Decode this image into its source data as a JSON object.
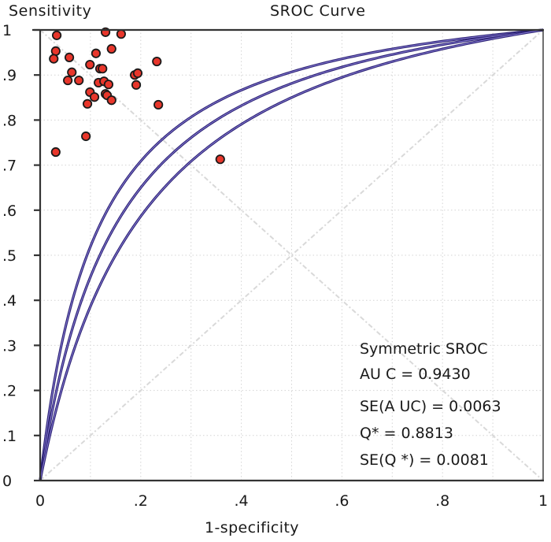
{
  "chart_data": {
    "type": "scatter",
    "title": "SROC Curve",
    "ylabel": "Sensitivity",
    "xlabel": "1-specificity",
    "xlim": [
      0,
      1
    ],
    "ylim": [
      0,
      1
    ],
    "grid": true,
    "x_ticks": [
      {
        "value": 0,
        "label": "0"
      },
      {
        "value": 0.2,
        "label": ".2"
      },
      {
        "value": 0.4,
        "label": ".4"
      },
      {
        "value": 0.6,
        "label": ".6"
      },
      {
        "value": 0.8,
        "label": ".8"
      },
      {
        "value": 1,
        "label": "1"
      }
    ],
    "y_ticks": [
      {
        "value": 0,
        "label": "0"
      },
      {
        "value": 0.1,
        "label": ".1"
      },
      {
        "value": 0.2,
        "label": ".2"
      },
      {
        "value": 0.3,
        "label": ".3"
      },
      {
        "value": 0.4,
        "label": ".4"
      },
      {
        "value": 0.5,
        "label": ".5"
      },
      {
        "value": 0.6,
        "label": ".6"
      },
      {
        "value": 0.7,
        "label": ".7"
      },
      {
        "value": 0.8,
        "label": ".8"
      },
      {
        "value": 0.9,
        "label": ".9"
      },
      {
        "value": 1,
        "label": "1"
      }
    ],
    "reference_lines": [
      {
        "name": "chance-diagonal",
        "from": [
          0,
          0
        ],
        "to": [
          1,
          1
        ]
      },
      {
        "name": "q-star-diagonal",
        "from": [
          0,
          1
        ],
        "to": [
          1,
          0
        ]
      }
    ],
    "curves": [
      {
        "name": "SROC upper CI",
        "log_dor": 4.55,
        "color": "#2b2173"
      },
      {
        "name": "Symmetric SROC",
        "log_dor": 4.01,
        "color": "#2b2173"
      },
      {
        "name": "SROC lower CI",
        "log_dor": 3.47,
        "color": "#2b2173"
      }
    ],
    "series": [
      {
        "name": "Studies",
        "color": "#e8362b",
        "points": [
          {
            "x": 0.033,
            "y": 0.988
          },
          {
            "x": 0.031,
            "y": 0.953
          },
          {
            "x": 0.027,
            "y": 0.936
          },
          {
            "x": 0.058,
            "y": 0.939
          },
          {
            "x": 0.063,
            "y": 0.906
          },
          {
            "x": 0.055,
            "y": 0.888
          },
          {
            "x": 0.077,
            "y": 0.888
          },
          {
            "x": 0.13,
            "y": 0.995
          },
          {
            "x": 0.161,
            "y": 0.991
          },
          {
            "x": 0.111,
            "y": 0.948
          },
          {
            "x": 0.142,
            "y": 0.958
          },
          {
            "x": 0.099,
            "y": 0.923
          },
          {
            "x": 0.119,
            "y": 0.914
          },
          {
            "x": 0.124,
            "y": 0.914
          },
          {
            "x": 0.116,
            "y": 0.883
          },
          {
            "x": 0.127,
            "y": 0.886
          },
          {
            "x": 0.136,
            "y": 0.879
          },
          {
            "x": 0.099,
            "y": 0.862
          },
          {
            "x": 0.108,
            "y": 0.851
          },
          {
            "x": 0.13,
            "y": 0.858
          },
          {
            "x": 0.133,
            "y": 0.855
          },
          {
            "x": 0.142,
            "y": 0.844
          },
          {
            "x": 0.094,
            "y": 0.836
          },
          {
            "x": 0.091,
            "y": 0.764
          },
          {
            "x": 0.031,
            "y": 0.729
          },
          {
            "x": 0.188,
            "y": 0.9
          },
          {
            "x": 0.194,
            "y": 0.904
          },
          {
            "x": 0.191,
            "y": 0.878
          },
          {
            "x": 0.232,
            "y": 0.93
          },
          {
            "x": 0.235,
            "y": 0.834
          },
          {
            "x": 0.358,
            "y": 0.713
          }
        ]
      }
    ],
    "annotations": {
      "heading": "Symmetric SROC",
      "lines": [
        "AU C = 0.9430",
        "SE(A UC)  = 0.0063",
        "Q* = 0.8813",
        "SE(Q *) = 0.0081"
      ],
      "placement": "bottom-right"
    },
    "statistics": {
      "AUC": 0.943,
      "SE_AUC": 0.0063,
      "Q_star": 0.8813,
      "SE_Q_star": 0.0081
    }
  }
}
